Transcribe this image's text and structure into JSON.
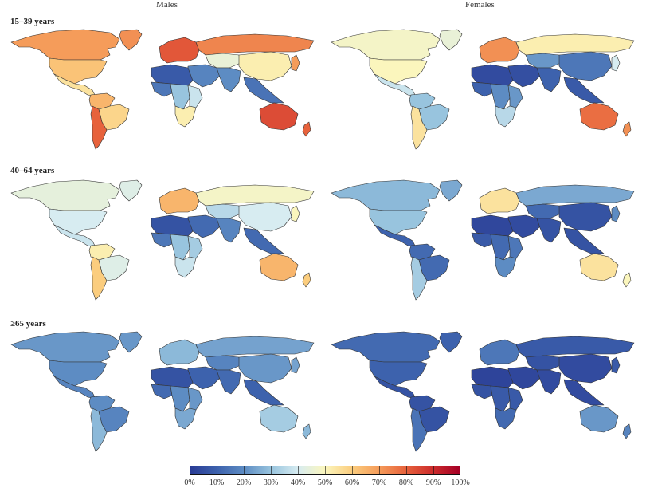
{
  "columns": [
    "Males",
    "Females"
  ],
  "rows": [
    "15–39 years",
    "40–64 years",
    "≥65 years"
  ],
  "legend": {
    "ticks": [
      "0%",
      "10%",
      "20%",
      "30%",
      "40%",
      "50%",
      "60%",
      "70%",
      "80%",
      "90%",
      "100%"
    ]
  },
  "palette": {
    "0": "#2a3c95",
    "10": "#3d62ad",
    "20": "#5d8cc3",
    "30": "#98c4de",
    "40": "#d7ecf1",
    "50": "#fbf6bd",
    "60": "#fbcd7e",
    "70": "#f59c5a",
    "80": "#e7623c",
    "90": "#cc2c2c",
    "100": "#a50026"
  },
  "maps": [
    {
      "group": "Males",
      "age": "15–39 years",
      "regions": {
        "north_america": 70,
        "usa": 62,
        "mexico_central": 55,
        "south_america_north": 65,
        "brazil": 58,
        "south_america_south": 80,
        "greenland": 72,
        "europe": 82,
        "russia": 74,
        "middle_east": 18,
        "north_africa": 8,
        "west_africa": 15,
        "central_africa": 30,
        "east_africa": 38,
        "southern_africa": 52,
        "central_asia": 45,
        "south_asia": 20,
        "china": 52,
        "southeast_asia": 14,
        "japan_korea": 70,
        "australia": 84,
        "new_zealand": 80
      }
    },
    {
      "group": "Females",
      "age": "15–39 years",
      "regions": {
        "north_america": 48,
        "usa": 50,
        "mexico_central": 38,
        "south_america_north": 30,
        "brazil": 30,
        "south_america_south": 55,
        "greenland": 45,
        "europe": 72,
        "russia": 52,
        "middle_east": 5,
        "north_africa": 4,
        "west_africa": 10,
        "central_africa": 20,
        "east_africa": 22,
        "southern_africa": 35,
        "central_asia": 22,
        "south_asia": 10,
        "china": 15,
        "southeast_asia": 8,
        "japan_korea": 40,
        "australia": 78,
        "new_zealand": 72
      }
    },
    {
      "group": "Males",
      "age": "40–64 years",
      "regions": {
        "north_america": 44,
        "usa": 40,
        "mexico_central": 38,
        "south_america_north": 52,
        "brazil": 42,
        "south_america_south": 60,
        "greenland": 42,
        "europe": 65,
        "russia": 48,
        "middle_east": 12,
        "north_africa": 6,
        "west_africa": 15,
        "central_africa": 30,
        "east_africa": 32,
        "southern_africa": 38,
        "central_asia": 35,
        "south_asia": 18,
        "china": 40,
        "southeast_asia": 12,
        "japan_korea": 50,
        "australia": 65,
        "new_zealand": 60
      }
    },
    {
      "group": "Females",
      "age": "40–64 years",
      "regions": {
        "north_america": 28,
        "usa": 30,
        "mexico_central": 10,
        "south_america_north": 12,
        "brazil": 12,
        "south_america_south": 32,
        "greenland": 25,
        "europe": 55,
        "russia": 25,
        "middle_east": 4,
        "north_africa": 3,
        "west_africa": 8,
        "central_africa": 12,
        "east_africa": 15,
        "southern_africa": 20,
        "central_asia": 12,
        "south_asia": 6,
        "china": 6,
        "southeast_asia": 6,
        "japan_korea": 20,
        "australia": 55,
        "new_zealand": 50
      }
    },
    {
      "group": "Males",
      "age": "≥65 years",
      "regions": {
        "north_america": 22,
        "usa": 20,
        "mexico_central": 18,
        "south_america_north": 20,
        "brazil": 18,
        "south_america_south": 28,
        "greenland": 22,
        "europe": 28,
        "russia": 24,
        "middle_east": 10,
        "north_africa": 6,
        "west_africa": 12,
        "central_africa": 20,
        "east_africa": 22,
        "southern_africa": 25,
        "central_asia": 18,
        "south_asia": 12,
        "china": 22,
        "southeast_asia": 10,
        "japan_korea": 24,
        "australia": 32,
        "new_zealand": 28
      }
    },
    {
      "group": "Females",
      "age": "≥65 years",
      "regions": {
        "north_america": 12,
        "usa": 10,
        "mexico_central": 6,
        "south_america_north": 6,
        "brazil": 6,
        "south_america_south": 14,
        "greenland": 10,
        "europe": 15,
        "russia": 8,
        "middle_east": 3,
        "north_africa": 2,
        "west_africa": 6,
        "central_africa": 8,
        "east_africa": 8,
        "southern_africa": 12,
        "central_asia": 6,
        "south_asia": 4,
        "china": 4,
        "southeast_asia": 4,
        "japan_korea": 8,
        "australia": 22,
        "new_zealand": 18
      }
    }
  ]
}
